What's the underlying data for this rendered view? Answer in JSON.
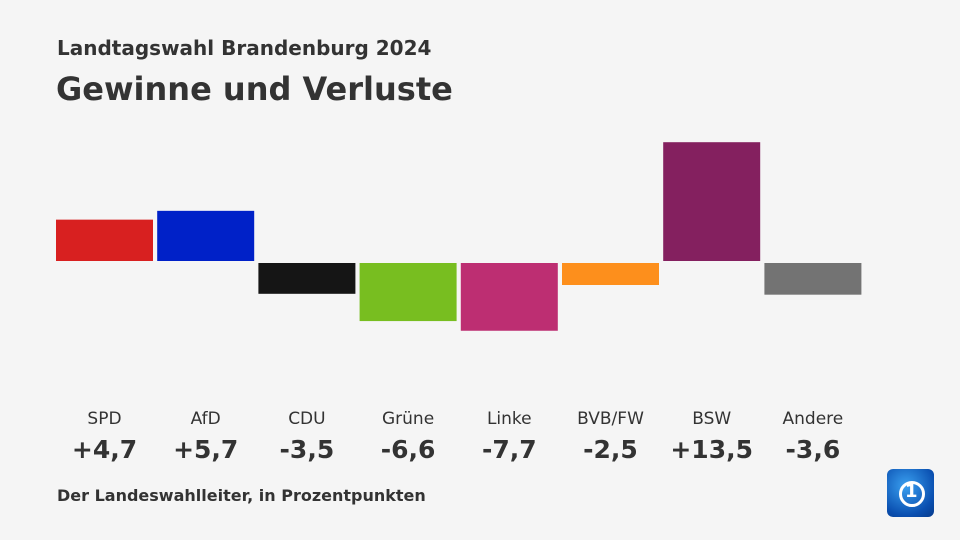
{
  "header": {
    "subtitle": "Landtagswahl Brandenburg 2024",
    "title": "Gewinne und Verluste"
  },
  "source": "Der Landeswahlleiter, in Prozentpunkten",
  "logo": {
    "icon": "ard-tagesschau-logo",
    "text": "1"
  },
  "chart_data": {
    "type": "bar",
    "title": "Gewinne und Verluste",
    "subtitle": "Landtagswahl Brandenburg 2024",
    "categories": [
      "SPD",
      "AfD",
      "CDU",
      "Grüne",
      "Linke",
      "BVB/FW",
      "BSW",
      "Andere"
    ],
    "values": [
      4.7,
      5.7,
      -3.5,
      -6.6,
      -7.7,
      -2.5,
      13.5,
      -3.6
    ],
    "labels": [
      "+4,7",
      "+5,7",
      "-3,5",
      "-6,6",
      "-7,7",
      "-2,5",
      "+13,5",
      "-3,6"
    ],
    "colors": [
      "#d82020",
      "#0021c8",
      "#151515",
      "#78be20",
      "#bd2e72",
      "#fd8f1c",
      "#84205f",
      "#737373"
    ],
    "ylabel": "in Prozentpunkten",
    "grid": false
  }
}
